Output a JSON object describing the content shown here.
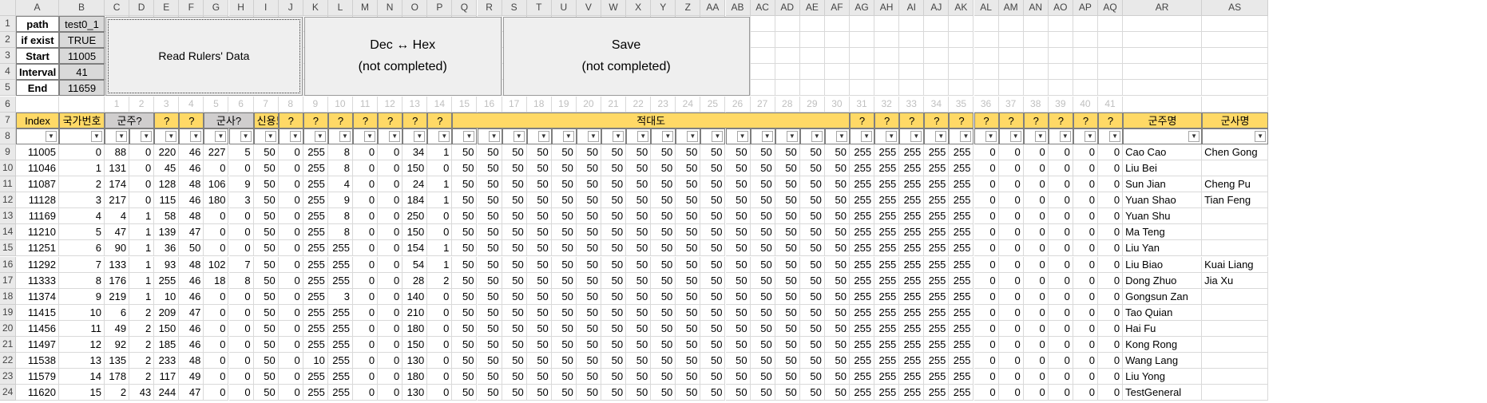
{
  "columns": [
    "A",
    "B",
    "C",
    "D",
    "E",
    "F",
    "G",
    "H",
    "I",
    "J",
    "K",
    "L",
    "M",
    "N",
    "O",
    "P",
    "Q",
    "R",
    "S",
    "T",
    "U",
    "V",
    "W",
    "X",
    "Y",
    "Z",
    "AA",
    "AB",
    "AC",
    "AD",
    "AE",
    "AF",
    "AG",
    "AH",
    "AI",
    "AJ",
    "AK",
    "AL",
    "AM",
    "AN",
    "AO",
    "AP",
    "AQ",
    "AR",
    "AS"
  ],
  "rows": [
    "1",
    "2",
    "3",
    "4",
    "5",
    "6",
    "7",
    "8",
    "9",
    "10",
    "11",
    "12",
    "13",
    "14",
    "15",
    "16",
    "17",
    "18",
    "19",
    "20",
    "21",
    "22",
    "23",
    "24"
  ],
  "params": [
    {
      "label": "path",
      "value": "test0_1"
    },
    {
      "label": "if exist",
      "value": "TRUE"
    },
    {
      "label": "Start",
      "value": "11005"
    },
    {
      "label": "Interval",
      "value": "41"
    },
    {
      "label": "End",
      "value": "11659"
    }
  ],
  "buttons": {
    "read": {
      "line1": "Read Rulers' Data"
    },
    "dechex": {
      "line1": "Dec ↔ Hex",
      "line2": "(not completed)"
    },
    "save": {
      "line1": "Save",
      "line2": "(not completed)"
    }
  },
  "index_numbers": [
    "1",
    "2",
    "3",
    "4",
    "5",
    "6",
    "7",
    "8",
    "9",
    "10",
    "11",
    "12",
    "13",
    "14",
    "15",
    "16",
    "17",
    "18",
    "19",
    "20",
    "21",
    "22",
    "23",
    "24",
    "25",
    "26",
    "27",
    "28",
    "29",
    "30",
    "31",
    "32",
    "33",
    "34",
    "35",
    "36",
    "37",
    "38",
    "39",
    "40",
    "41"
  ],
  "headers": {
    "index": "Index",
    "nation_no": "국가번호",
    "ruler_q": "군주?",
    "q": "?",
    "advisor_q": "군사?",
    "trust": "신용도",
    "hostility": "적대도",
    "ruler_name": "군주명",
    "advisor_name": "군사명"
  },
  "table": [
    {
      "idx": "11005",
      "b": "0",
      "c": "88",
      "d": "0",
      "e": "220",
      "f": "46",
      "g": "227",
      "h": "5",
      "i": "50",
      "j": "0",
      "k": "255",
      "l": "8",
      "m": "0",
      "n": "0",
      "o": "34",
      "p": "1",
      "ag": [
        "255",
        "255",
        "255",
        "255",
        "255"
      ],
      "al": [
        "0",
        "0",
        "0",
        "0",
        "0",
        "0"
      ],
      "ruler": "Cao Cao",
      "advisor": "Chen Gong"
    },
    {
      "idx": "11046",
      "b": "1",
      "c": "131",
      "d": "0",
      "e": "45",
      "f": "46",
      "g": "0",
      "h": "0",
      "i": "50",
      "j": "0",
      "k": "255",
      "l": "8",
      "m": "0",
      "n": "0",
      "o": "150",
      "p": "0",
      "ag": [
        "255",
        "255",
        "255",
        "255",
        "255"
      ],
      "al": [
        "0",
        "0",
        "0",
        "0",
        "0",
        "0"
      ],
      "ruler": "Liu Bei",
      "advisor": ""
    },
    {
      "idx": "11087",
      "b": "2",
      "c": "174",
      "d": "0",
      "e": "128",
      "f": "48",
      "g": "106",
      "h": "9",
      "i": "50",
      "j": "0",
      "k": "255",
      "l": "4",
      "m": "0",
      "n": "0",
      "o": "24",
      "p": "1",
      "ag": [
        "255",
        "255",
        "255",
        "255",
        "255"
      ],
      "al": [
        "0",
        "0",
        "0",
        "0",
        "0",
        "0"
      ],
      "ruler": "Sun Jian",
      "advisor": "Cheng Pu"
    },
    {
      "idx": "11128",
      "b": "3",
      "c": "217",
      "d": "0",
      "e": "115",
      "f": "46",
      "g": "180",
      "h": "3",
      "i": "50",
      "j": "0",
      "k": "255",
      "l": "9",
      "m": "0",
      "n": "0",
      "o": "184",
      "p": "1",
      "ag": [
        "255",
        "255",
        "255",
        "255",
        "255"
      ],
      "al": [
        "0",
        "0",
        "0",
        "0",
        "0",
        "0"
      ],
      "ruler": "Yuan Shao",
      "advisor": "Tian Feng"
    },
    {
      "idx": "11169",
      "b": "4",
      "c": "4",
      "d": "1",
      "e": "58",
      "f": "48",
      "g": "0",
      "h": "0",
      "i": "50",
      "j": "0",
      "k": "255",
      "l": "8",
      "m": "0",
      "n": "0",
      "o": "250",
      "p": "0",
      "ag": [
        "255",
        "255",
        "255",
        "255",
        "255"
      ],
      "al": [
        "0",
        "0",
        "0",
        "0",
        "0",
        "0"
      ],
      "ruler": "Yuan Shu",
      "advisor": ""
    },
    {
      "idx": "11210",
      "b": "5",
      "c": "47",
      "d": "1",
      "e": "139",
      "f": "47",
      "g": "0",
      "h": "0",
      "i": "50",
      "j": "0",
      "k": "255",
      "l": "8",
      "m": "0",
      "n": "0",
      "o": "150",
      "p": "0",
      "ag": [
        "255",
        "255",
        "255",
        "255",
        "255"
      ],
      "al": [
        "0",
        "0",
        "0",
        "0",
        "0",
        "0"
      ],
      "ruler": "Ma Teng",
      "advisor": ""
    },
    {
      "idx": "11251",
      "b": "6",
      "c": "90",
      "d": "1",
      "e": "36",
      "f": "50",
      "g": "0",
      "h": "0",
      "i": "50",
      "j": "0",
      "k": "255",
      "l": "255",
      "m": "0",
      "n": "0",
      "o": "154",
      "p": "1",
      "ag": [
        "255",
        "255",
        "255",
        "255",
        "255"
      ],
      "al": [
        "0",
        "0",
        "0",
        "0",
        "0",
        "0"
      ],
      "ruler": "Liu Yan",
      "advisor": ""
    },
    {
      "idx": "11292",
      "b": "7",
      "c": "133",
      "d": "1",
      "e": "93",
      "f": "48",
      "g": "102",
      "h": "7",
      "i": "50",
      "j": "0",
      "k": "255",
      "l": "255",
      "m": "0",
      "n": "0",
      "o": "54",
      "p": "1",
      "ag": [
        "255",
        "255",
        "255",
        "255",
        "255"
      ],
      "al": [
        "0",
        "0",
        "0",
        "0",
        "0",
        "0"
      ],
      "ruler": "Liu Biao",
      "advisor": "Kuai Liang"
    },
    {
      "idx": "11333",
      "b": "8",
      "c": "176",
      "d": "1",
      "e": "255",
      "f": "46",
      "g": "18",
      "h": "8",
      "i": "50",
      "j": "0",
      "k": "255",
      "l": "255",
      "m": "0",
      "n": "0",
      "o": "28",
      "p": "2",
      "ag": [
        "255",
        "255",
        "255",
        "255",
        "255"
      ],
      "al": [
        "0",
        "0",
        "0",
        "0",
        "0",
        "0"
      ],
      "ruler": "Dong Zhuo",
      "advisor": "Jia Xu"
    },
    {
      "idx": "11374",
      "b": "9",
      "c": "219",
      "d": "1",
      "e": "10",
      "f": "46",
      "g": "0",
      "h": "0",
      "i": "50",
      "j": "0",
      "k": "255",
      "l": "3",
      "m": "0",
      "n": "0",
      "o": "140",
      "p": "0",
      "ag": [
        "255",
        "255",
        "255",
        "255",
        "255"
      ],
      "al": [
        "0",
        "0",
        "0",
        "0",
        "0",
        "0"
      ],
      "ruler": "Gongsun Zan",
      "advisor": ""
    },
    {
      "idx": "11415",
      "b": "10",
      "c": "6",
      "d": "2",
      "e": "209",
      "f": "47",
      "g": "0",
      "h": "0",
      "i": "50",
      "j": "0",
      "k": "255",
      "l": "255",
      "m": "0",
      "n": "0",
      "o": "210",
      "p": "0",
      "ag": [
        "255",
        "255",
        "255",
        "255",
        "255"
      ],
      "al": [
        "0",
        "0",
        "0",
        "0",
        "0",
        "0"
      ],
      "ruler": "Tao Quian",
      "advisor": ""
    },
    {
      "idx": "11456",
      "b": "11",
      "c": "49",
      "d": "2",
      "e": "150",
      "f": "46",
      "g": "0",
      "h": "0",
      "i": "50",
      "j": "0",
      "k": "255",
      "l": "255",
      "m": "0",
      "n": "0",
      "o": "180",
      "p": "0",
      "ag": [
        "255",
        "255",
        "255",
        "255",
        "255"
      ],
      "al": [
        "0",
        "0",
        "0",
        "0",
        "0",
        "0"
      ],
      "ruler": "Hai Fu",
      "advisor": ""
    },
    {
      "idx": "11497",
      "b": "12",
      "c": "92",
      "d": "2",
      "e": "185",
      "f": "46",
      "g": "0",
      "h": "0",
      "i": "50",
      "j": "0",
      "k": "255",
      "l": "255",
      "m": "0",
      "n": "0",
      "o": "150",
      "p": "0",
      "ag": [
        "255",
        "255",
        "255",
        "255",
        "255"
      ],
      "al": [
        "0",
        "0",
        "0",
        "0",
        "0",
        "0"
      ],
      "ruler": "Kong Rong",
      "advisor": ""
    },
    {
      "idx": "11538",
      "b": "13",
      "c": "135",
      "d": "2",
      "e": "233",
      "f": "48",
      "g": "0",
      "h": "0",
      "i": "50",
      "j": "0",
      "k": "10",
      "l": "255",
      "m": "0",
      "n": "0",
      "o": "130",
      "p": "0",
      "ag": [
        "255",
        "255",
        "255",
        "255",
        "255"
      ],
      "al": [
        "0",
        "0",
        "0",
        "0",
        "0",
        "0"
      ],
      "ruler": "Wang Lang",
      "advisor": ""
    },
    {
      "idx": "11579",
      "b": "14",
      "c": "178",
      "d": "2",
      "e": "117",
      "f": "49",
      "g": "0",
      "h": "0",
      "i": "50",
      "j": "0",
      "k": "255",
      "l": "255",
      "m": "0",
      "n": "0",
      "o": "180",
      "p": "0",
      "ag": [
        "255",
        "255",
        "255",
        "255",
        "255"
      ],
      "al": [
        "0",
        "0",
        "0",
        "0",
        "0",
        "0"
      ],
      "ruler": "Liu Yong",
      "advisor": ""
    },
    {
      "idx": "11620",
      "b": "15",
      "c": "2",
      "d": "43",
      "e": "244",
      "f": "47",
      "g": "0",
      "h": "0",
      "i": "50",
      "j": "0",
      "k": "255",
      "l": "255",
      "m": "0",
      "n": "0",
      "o": "130",
      "p": "0",
      "ag": [
        "255",
        "255",
        "255",
        "255",
        "255"
      ],
      "al": [
        "0",
        "0",
        "0",
        "0",
        "0",
        "0"
      ],
      "ruler": "TestGeneral",
      "advisor": ""
    }
  ],
  "hostility_value": "50",
  "colors": {
    "yellow": "#ffd966",
    "gray": "#d0cece",
    "header": "#e9e9e9"
  }
}
